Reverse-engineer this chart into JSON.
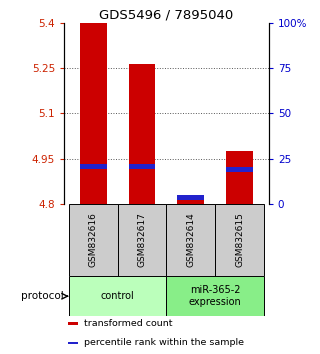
{
  "title": "GDS5496 / 7895040",
  "samples": [
    "GSM832616",
    "GSM832617",
    "GSM832614",
    "GSM832615"
  ],
  "ylim_left": [
    4.8,
    5.4
  ],
  "ylim_right": [
    0,
    100
  ],
  "yticks_left": [
    4.8,
    4.95,
    5.1,
    5.25,
    5.4
  ],
  "yticks_right": [
    0,
    25,
    50,
    75,
    100
  ],
  "ytick_labels_left": [
    "4.8",
    "4.95",
    "5.1",
    "5.25",
    "5.4"
  ],
  "ytick_labels_right": [
    "0",
    "25",
    "50",
    "75",
    "100%"
  ],
  "bar_tops": [
    5.4,
    5.265,
    4.83,
    4.975
  ],
  "blue_marker_values": [
    4.925,
    4.925,
    4.822,
    4.915
  ],
  "bar_color": "#cc0000",
  "blue_color": "#2222cc",
  "dotted_line_color": "#555555",
  "groups": [
    {
      "label": "control",
      "samples": [
        0,
        1
      ],
      "color": "#bbffbb"
    },
    {
      "label": "miR-365-2\nexpression",
      "samples": [
        2,
        3
      ],
      "color": "#88ee88"
    }
  ],
  "protocol_label": "protocol",
  "legend_items": [
    {
      "color": "#cc0000",
      "label": "transformed count"
    },
    {
      "color": "#2222cc",
      "label": "percentile rank within the sample"
    }
  ],
  "axis_left_color": "#cc2200",
  "axis_right_color": "#0000cc",
  "sample_box_color": "#cccccc",
  "bar_width": 0.55,
  "figwidth": 3.2,
  "figheight": 3.54,
  "dpi": 100
}
